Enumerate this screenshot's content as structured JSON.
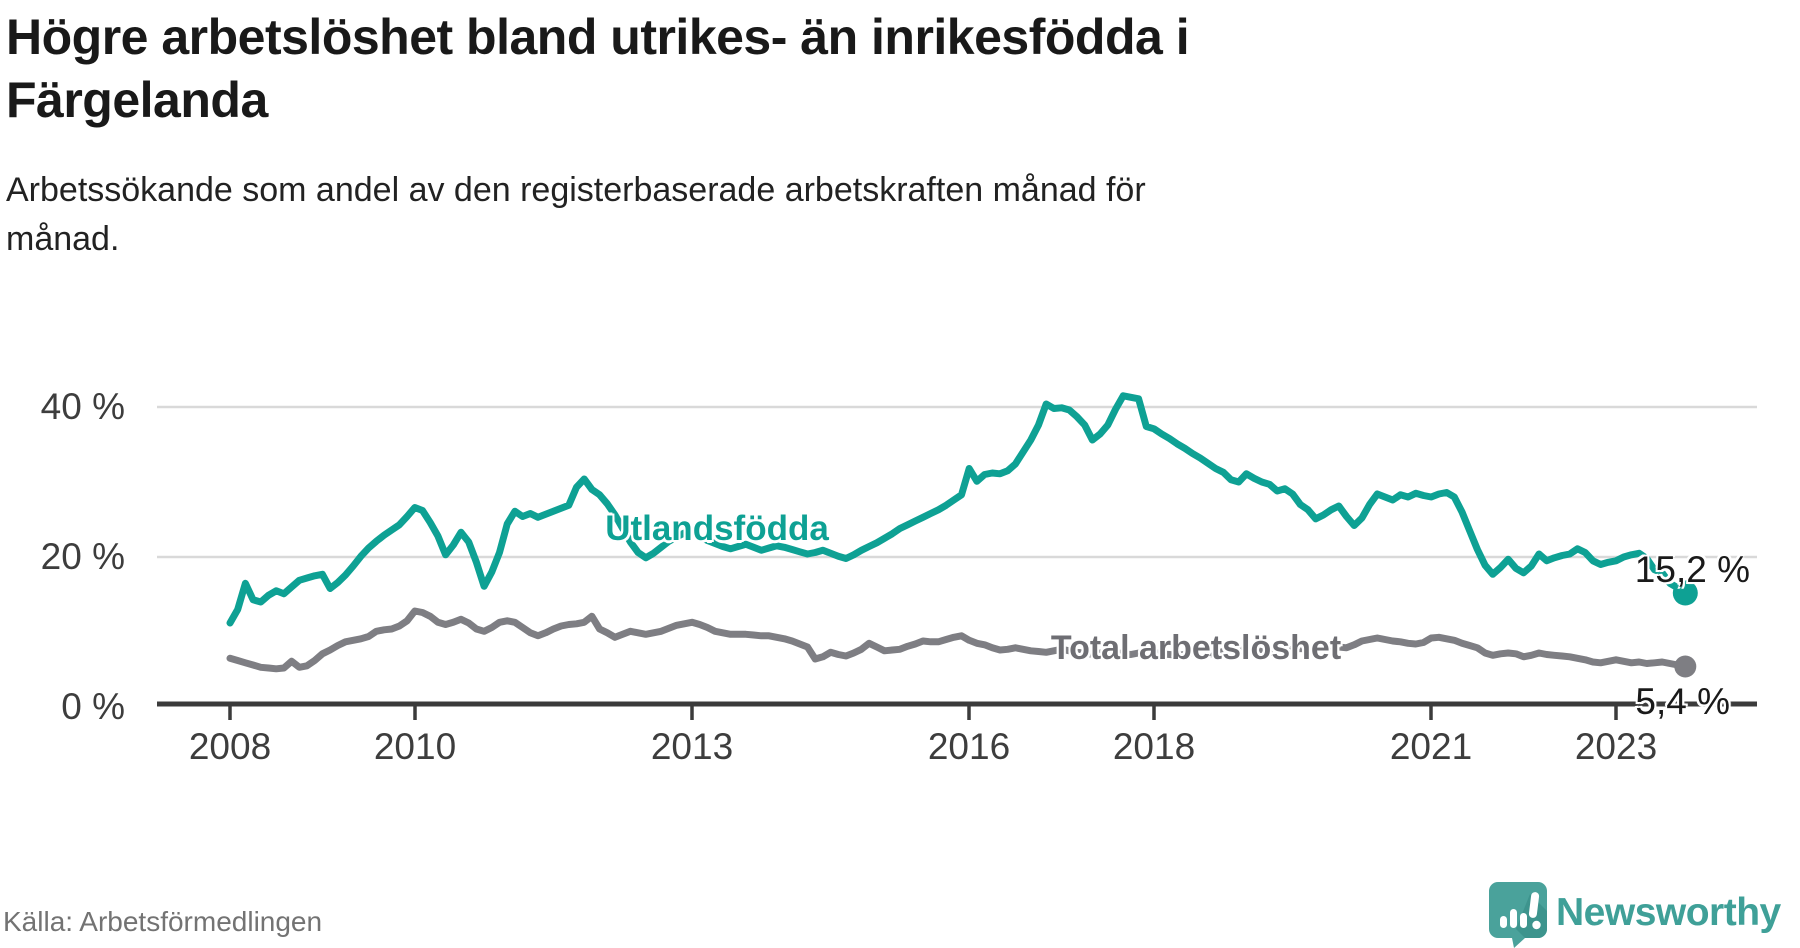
{
  "header": {
    "title": "Högre arbetslöshet bland utrikes- än inrikesfödda i Färgelanda",
    "title_lines": [
      "Högre arbetslöshet bland utrikes- än inrikesfödda i",
      "Färgelanda"
    ],
    "subtitle": "Arbetssökande som andel av den registerbaserade arbetskraften månad för månad.",
    "subtitle_lines": [
      "Arbetssökande som andel av den registerbaserade arbetskraften månad för",
      "månad."
    ]
  },
  "chart_data": {
    "type": "line",
    "unit": "%",
    "x_range": [
      "2008-01",
      "2023-10"
    ],
    "points_per_series": 190,
    "ylim": [
      0,
      44
    ],
    "grid": "horizontal",
    "y_ticks": [
      "0 %",
      "20 %",
      "40 %"
    ],
    "y_tick_values": [
      0,
      20,
      40
    ],
    "x_ticks": [
      "2008",
      "2010",
      "2013",
      "2016",
      "2018",
      "2021",
      "2023"
    ],
    "colors": {
      "utlandsfodda": "#0ea194",
      "total": "#7e7e83",
      "axis": "#3b3b3b",
      "grid": "#d9d9d9"
    },
    "series": [
      {
        "name": "Utlandsfödda",
        "end_label": "15,2 %",
        "end_value": 15.2,
        "color": "#0ea194",
        "values": [
          11.2,
          13.0,
          16.5,
          14.3,
          14.0,
          14.9,
          15.5,
          15.1,
          16.0,
          16.9,
          17.2,
          17.5,
          17.7,
          15.8,
          16.6,
          17.6,
          18.8,
          20.1,
          21.2,
          22.1,
          22.9,
          23.6,
          24.3,
          25.4,
          26.6,
          26.2,
          24.6,
          22.8,
          20.3,
          21.6,
          23.3,
          22.0,
          19.3,
          16.1,
          18.0,
          20.6,
          24.4,
          26.1,
          25.4,
          25.8,
          25.3,
          25.7,
          26.1,
          26.5,
          26.9,
          29.3,
          30.4,
          29.0,
          28.3,
          27.1,
          25.6,
          23.8,
          22.0,
          20.6,
          19.9,
          20.5,
          21.3,
          22.1,
          22.7,
          23.2,
          23.5,
          22.7,
          22.2,
          21.8,
          21.4,
          21.1,
          21.4,
          21.7,
          21.3,
          20.9,
          21.2,
          21.5,
          21.3,
          21.0,
          20.7,
          20.4,
          20.6,
          20.9,
          20.5,
          20.1,
          19.8,
          20.3,
          20.9,
          21.4,
          21.9,
          22.5,
          23.1,
          23.8,
          24.3,
          24.8,
          25.3,
          25.8,
          26.3,
          26.9,
          27.6,
          28.3,
          31.8,
          30.1,
          31.0,
          31.2,
          31.1,
          31.5,
          32.4,
          34.0,
          35.6,
          37.6,
          40.4,
          39.8,
          39.9,
          39.6,
          38.7,
          37.6,
          35.6,
          36.4,
          37.6,
          39.7,
          41.5,
          41.3,
          41.1,
          37.4,
          37.1,
          36.4,
          35.8,
          35.1,
          34.5,
          33.8,
          33.2,
          32.5,
          31.8,
          31.3,
          30.3,
          30.0,
          31.1,
          30.5,
          30.0,
          29.7,
          28.8,
          29.1,
          28.4,
          27.0,
          26.3,
          25.1,
          25.6,
          26.3,
          26.8,
          25.4,
          24.2,
          25.2,
          27.0,
          28.4,
          28.0,
          27.6,
          28.3,
          28.0,
          28.5,
          28.2,
          28.0,
          28.4,
          28.6,
          28.0,
          26.0,
          23.5,
          21.0,
          18.9,
          17.7,
          18.6,
          19.7,
          18.5,
          17.9,
          18.8,
          20.4,
          19.5,
          19.9,
          20.2,
          20.4,
          21.1,
          20.6,
          19.5,
          19.0,
          19.3,
          19.5,
          20.0,
          20.3,
          20.5,
          19.8,
          18.3,
          17.9,
          16.5,
          15.9,
          15.2
        ]
      },
      {
        "name": "Total arbetslöshet",
        "end_label": "5,4 %",
        "end_value": 5.4,
        "color": "#7e7e83",
        "values": [
          6.5,
          6.2,
          5.9,
          5.6,
          5.3,
          5.2,
          5.1,
          5.2,
          6.1,
          5.3,
          5.5,
          6.2,
          7.1,
          7.6,
          8.2,
          8.7,
          8.9,
          9.1,
          9.4,
          10.1,
          10.3,
          10.4,
          10.8,
          11.5,
          12.8,
          12.6,
          12.1,
          11.3,
          11.0,
          11.3,
          11.7,
          11.2,
          10.4,
          10.1,
          10.6,
          11.3,
          11.5,
          11.3,
          10.6,
          9.9,
          9.5,
          9.9,
          10.4,
          10.8,
          11.0,
          11.1,
          11.3,
          12.1,
          10.4,
          9.9,
          9.3,
          9.7,
          10.1,
          9.9,
          9.7,
          9.9,
          10.1,
          10.5,
          10.9,
          11.1,
          11.3,
          11.0,
          10.6,
          10.1,
          9.9,
          9.7,
          9.7,
          9.7,
          9.6,
          9.5,
          9.5,
          9.3,
          9.1,
          8.8,
          8.4,
          8.0,
          6.4,
          6.7,
          7.3,
          7.0,
          6.8,
          7.2,
          7.7,
          8.5,
          8.0,
          7.5,
          7.6,
          7.7,
          8.1,
          8.4,
          8.8,
          8.7,
          8.7,
          9.0,
          9.3,
          9.5,
          8.9,
          8.5,
          8.3,
          7.9,
          7.6,
          7.7,
          7.9,
          7.7,
          7.5,
          7.4,
          7.3,
          7.5,
          7.7,
          7.5,
          7.3,
          7.2,
          7.0,
          7.2,
          7.4,
          7.3,
          7.1,
          7.0,
          7.2,
          7.4,
          7.3,
          7.1,
          7.0,
          6.9,
          7.0,
          7.2,
          7.1,
          7.0,
          7.2,
          7.4,
          7.3,
          7.5,
          7.7,
          7.6,
          7.4,
          7.3,
          7.5,
          7.7,
          7.6,
          7.8,
          7.7,
          7.9,
          8.0,
          8.2,
          8.0,
          7.9,
          8.3,
          8.8,
          9.0,
          9.2,
          9.0,
          8.8,
          8.7,
          8.5,
          8.4,
          8.6,
          9.2,
          9.3,
          9.1,
          8.9,
          8.5,
          8.2,
          7.9,
          7.2,
          6.9,
          7.1,
          7.2,
          7.1,
          6.7,
          6.9,
          7.2,
          7.0,
          6.9,
          6.8,
          6.7,
          6.5,
          6.3,
          6.0,
          5.9,
          6.1,
          6.3,
          6.1,
          5.9,
          6.0,
          5.8,
          5.9,
          6.0,
          5.8,
          5.6,
          5.4
        ]
      }
    ]
  },
  "footer": {
    "source": "Källa: Arbetsförmedlingen",
    "brand": "Newsworthy",
    "brand_color": "#3fa098",
    "chart_icon": "bar-chart-speech-bubble-icon"
  }
}
